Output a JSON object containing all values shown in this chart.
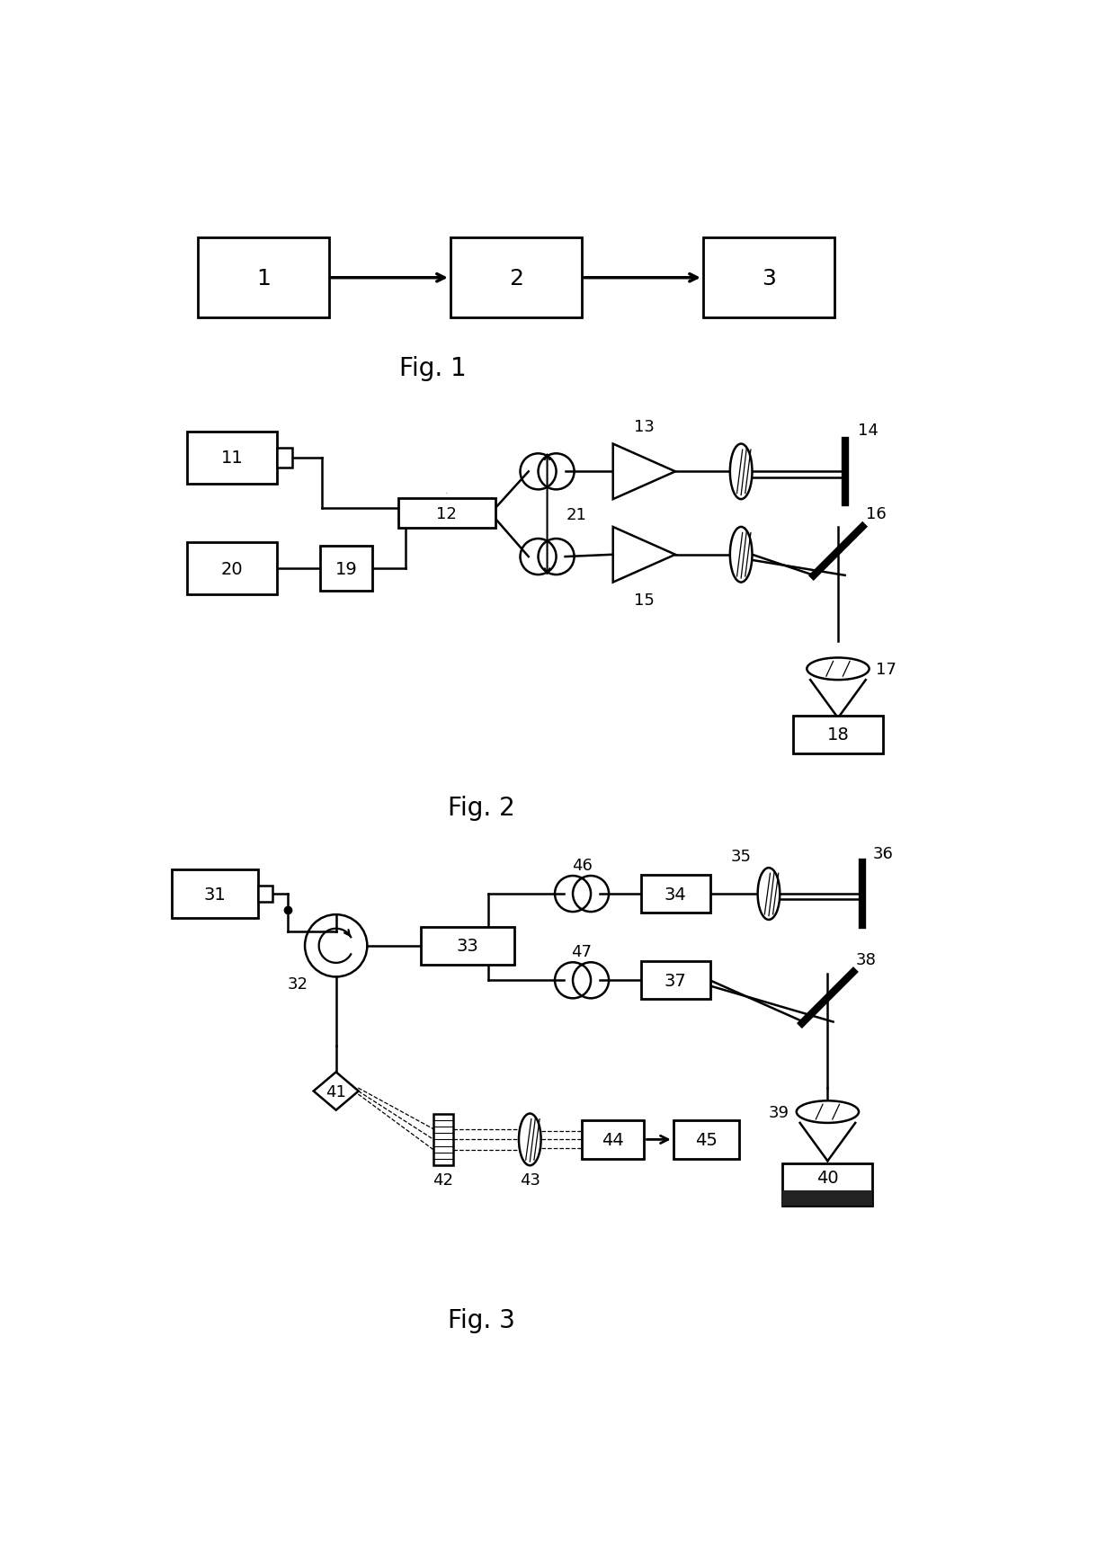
{
  "background_color": "#ffffff",
  "fig1_label": "Fig. 1",
  "fig2_label": "Fig. 2",
  "fig3_label": "Fig. 3"
}
